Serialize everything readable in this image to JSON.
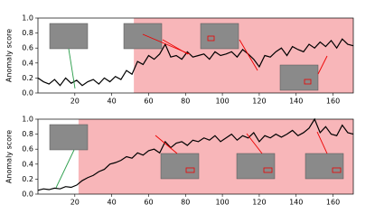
{
  "chart_data": [
    {
      "type": "line",
      "ylabel": "Anomaly score",
      "shade_color": "#f8b6b9",
      "anomaly_region": [
        52,
        171
      ],
      "xlim": [
        0,
        171
      ],
      "ylim": [
        0,
        1
      ],
      "xticks": [
        20,
        40,
        60,
        80,
        100,
        120,
        140,
        160
      ],
      "yticks": [
        {
          "value": 0,
          "label": "0.0"
        },
        {
          "value": 0.2,
          "label": "0.2"
        },
        {
          "value": 0.4,
          "label": "0.4"
        },
        {
          "value": 0.6,
          "label": "0.6"
        },
        {
          "value": 0.8,
          "label": "0.8"
        },
        {
          "value": 1,
          "label": "1.0"
        }
      ],
      "x": [
        0,
        3,
        6,
        9,
        12,
        15,
        18,
        21,
        24,
        27,
        30,
        33,
        36,
        39,
        42,
        45,
        48,
        51,
        54,
        57,
        60,
        63,
        66,
        69,
        72,
        75,
        78,
        81,
        84,
        87,
        90,
        93,
        96,
        99,
        102,
        105,
        108,
        111,
        114,
        117,
        120,
        123,
        126,
        129,
        132,
        135,
        138,
        141,
        144,
        147,
        150,
        153,
        156,
        159,
        162,
        165,
        168,
        171
      ],
      "series": [
        {
          "color": "#000000",
          "values": [
            0.2,
            0.15,
            0.12,
            0.18,
            0.1,
            0.2,
            0.13,
            0.17,
            0.1,
            0.15,
            0.18,
            0.12,
            0.2,
            0.15,
            0.22,
            0.18,
            0.3,
            0.25,
            0.42,
            0.38,
            0.5,
            0.45,
            0.52,
            0.65,
            0.48,
            0.5,
            0.45,
            0.55,
            0.48,
            0.5,
            0.52,
            0.45,
            0.55,
            0.5,
            0.52,
            0.55,
            0.48,
            0.58,
            0.52,
            0.45,
            0.35,
            0.5,
            0.48,
            0.55,
            0.6,
            0.5,
            0.62,
            0.58,
            0.55,
            0.65,
            0.6,
            0.68,
            0.62,
            0.7,
            0.6,
            0.72,
            0.65,
            0.63
          ]
        }
      ]
    },
    {
      "type": "line",
      "ylabel": "Anomaly score",
      "shade_color": "#f8b6b9",
      "anomaly_region": [
        22,
        171
      ],
      "xlim": [
        0,
        171
      ],
      "ylim": [
        0,
        1
      ],
      "xticks": [
        20,
        40,
        60,
        80,
        100,
        120,
        140,
        160
      ],
      "yticks": [
        {
          "value": 0,
          "label": "0.0"
        },
        {
          "value": 0.2,
          "label": "0.2"
        },
        {
          "value": 0.4,
          "label": "0.4"
        },
        {
          "value": 0.6,
          "label": "0.6"
        },
        {
          "value": 0.8,
          "label": "0.8"
        },
        {
          "value": 1,
          "label": "1.0"
        }
      ],
      "x": [
        0,
        3,
        6,
        9,
        12,
        15,
        18,
        21,
        24,
        27,
        30,
        33,
        36,
        39,
        42,
        45,
        48,
        51,
        54,
        57,
        60,
        63,
        66,
        69,
        72,
        75,
        78,
        81,
        84,
        87,
        90,
        93,
        96,
        99,
        102,
        105,
        108,
        111,
        114,
        117,
        120,
        123,
        126,
        129,
        132,
        135,
        138,
        141,
        144,
        147,
        150,
        153,
        156,
        159,
        162,
        165,
        168,
        171
      ],
      "series": [
        {
          "color": "#000000",
          "values": [
            0.05,
            0.07,
            0.06,
            0.08,
            0.07,
            0.1,
            0.09,
            0.12,
            0.18,
            0.22,
            0.25,
            0.3,
            0.33,
            0.4,
            0.42,
            0.45,
            0.5,
            0.48,
            0.55,
            0.52,
            0.58,
            0.6,
            0.55,
            0.7,
            0.62,
            0.68,
            0.7,
            0.65,
            0.72,
            0.7,
            0.75,
            0.72,
            0.78,
            0.7,
            0.75,
            0.8,
            0.72,
            0.78,
            0.75,
            0.82,
            0.7,
            0.78,
            0.75,
            0.8,
            0.76,
            0.8,
            0.85,
            0.78,
            0.82,
            0.88,
            1.0,
            0.82,
            0.9,
            0.8,
            0.78,
            0.92,
            0.82,
            0.8
          ]
        }
      ]
    }
  ]
}
